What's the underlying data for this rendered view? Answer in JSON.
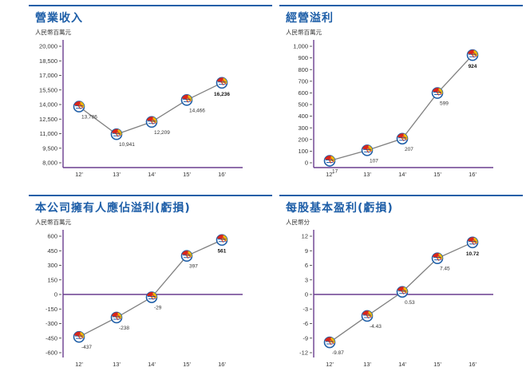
{
  "charts": [
    {
      "title": "營業收入",
      "unit": "人民幣百萬元"
    },
    {
      "title": "經營溢利",
      "unit": "人民幣百萬元"
    },
    {
      "title": "本公司擁有人應佔溢利(虧損)",
      "unit": "人民幣百萬元"
    },
    {
      "title": "每股基本盈利(虧損)",
      "unit": "人民幣分"
    }
  ],
  "colors": {
    "title": "#1f5fa8",
    "axis": "#6a3d8f",
    "line": "#808080",
    "marker_red": "#d9261c",
    "marker_blue": "#1f5fa8",
    "marker_yellow": "#f2b705"
  },
  "icon": "globe-logo-icon",
  "chart_data": [
    {
      "type": "line",
      "title": "營業收入",
      "ylabel": "人民幣百萬元",
      "categories": [
        "12'",
        "13'",
        "14'",
        "15'",
        "16'"
      ],
      "values": [
        13786,
        10941,
        12209,
        14466,
        16236
      ],
      "value_labels": [
        "13,786",
        "10,941",
        "12,209",
        "14,466",
        "16,236"
      ],
      "ylim": [
        8000,
        20000
      ],
      "yticks": [
        8000,
        9500,
        11000,
        12500,
        14000,
        15500,
        17000,
        18500,
        20000
      ],
      "ytick_labels": [
        "8,000",
        "9,500",
        "11,000",
        "12,500",
        "14,000",
        "15,500",
        "17,000",
        "18,500",
        "20,000"
      ],
      "zero_line": false
    },
    {
      "type": "line",
      "title": "經營溢利",
      "ylabel": "人民幣百萬元",
      "categories": [
        "12'",
        "13'",
        "14'",
        "15'",
        "16'"
      ],
      "values": [
        17,
        107,
        207,
        599,
        924
      ],
      "value_labels": [
        "17",
        "107",
        "207",
        "599",
        "924"
      ],
      "ylim": [
        0,
        1000
      ],
      "yticks": [
        0,
        100,
        200,
        300,
        400,
        500,
        600,
        700,
        800,
        900,
        1000
      ],
      "ytick_labels": [
        "0",
        "100",
        "200",
        "300",
        "400",
        "500",
        "600",
        "700",
        "800",
        "900",
        "1,000"
      ],
      "zero_line": false
    },
    {
      "type": "line",
      "title": "本公司擁有人應佔溢利(虧損)",
      "ylabel": "人民幣百萬元",
      "categories": [
        "12'",
        "13'",
        "14'",
        "15'",
        "16'"
      ],
      "values": [
        -437,
        -238,
        -29,
        397,
        561
      ],
      "value_labels": [
        "-437",
        "-238",
        "-29",
        "397",
        "561"
      ],
      "ylim": [
        -600,
        600
      ],
      "yticks": [
        -600,
        -450,
        -300,
        -150,
        0,
        150,
        300,
        450,
        600
      ],
      "ytick_labels": [
        "-600",
        "-450",
        "-300",
        "-150",
        "0",
        "150",
        "300",
        "450",
        "600"
      ],
      "zero_line": true
    },
    {
      "type": "line",
      "title": "每股基本盈利(虧損)",
      "ylabel": "人民幣分",
      "categories": [
        "12'",
        "13'",
        "14'",
        "15'",
        "16'"
      ],
      "values": [
        -9.87,
        -4.43,
        0.53,
        7.45,
        10.72
      ],
      "value_labels": [
        "-9.87",
        "-4.43",
        "0.53",
        "7.45",
        "10.72"
      ],
      "ylim": [
        -12,
        12
      ],
      "yticks": [
        -12,
        -9,
        -6,
        -3,
        0,
        3,
        6,
        9,
        12
      ],
      "ytick_labels": [
        "-12",
        "-9",
        "-6",
        "-3",
        "0",
        "3",
        "6",
        "9",
        "12"
      ],
      "zero_line": true
    }
  ]
}
